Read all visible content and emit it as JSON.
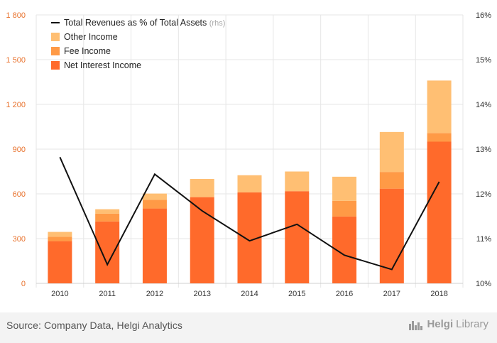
{
  "chart_data": {
    "type": "bar",
    "stacked": true,
    "categories": [
      "2010",
      "2011",
      "2012",
      "2013",
      "2014",
      "2015",
      "2016",
      "2017",
      "2018"
    ],
    "series": [
      {
        "name": "Net Interest Income",
        "color": "#ff6a2b",
        "values": [
          283,
          415,
          502,
          578,
          610,
          618,
          448,
          635,
          950
        ]
      },
      {
        "name": "Fee Income",
        "color": "#ff9a46",
        "values": [
          30,
          52,
          58,
          0,
          0,
          0,
          105,
          112,
          58
        ]
      },
      {
        "name": "Other Income",
        "color": "#ffbf73",
        "values": [
          32,
          30,
          42,
          122,
          115,
          132,
          162,
          268,
          352
        ]
      }
    ],
    "line_series": {
      "name": "Total Revenues as % of Total Assets",
      "name_suffix": "(rhs)",
      "color": "#111111",
      "axis": "right",
      "values": [
        12.82,
        10.42,
        12.44,
        11.62,
        10.95,
        11.32,
        10.63,
        10.31,
        12.27
      ]
    },
    "left_axis": {
      "ylim": [
        0,
        1800
      ],
      "ticks": [
        "0",
        "300",
        "600",
        "900",
        "1 200",
        "1 500",
        "1 800"
      ],
      "color": "#e8702a"
    },
    "right_axis": {
      "ylim": [
        10,
        16
      ],
      "ticks": [
        "10%",
        "11%",
        "12%",
        "13%",
        "14%",
        "15%",
        "16%"
      ]
    },
    "legend_placement": "top-left",
    "grid": true
  },
  "footer": {
    "source": "Source: Company Data, Helgi Analytics",
    "logo_bold": "Helgi",
    "logo_light": "Library"
  }
}
